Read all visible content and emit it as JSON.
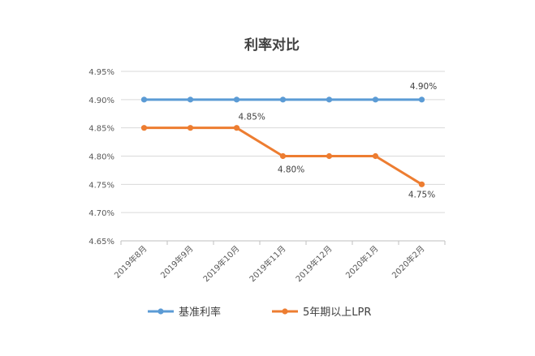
{
  "chart_data": {
    "type": "line",
    "title": "利率对比",
    "categories": [
      "2019年8月",
      "2019年9月",
      "2019年10月",
      "2019年11月",
      "2019年12月",
      "2020年1月",
      "2020年2月"
    ],
    "ylim": [
      4.65,
      4.95
    ],
    "ystep": 0.05,
    "y_tick_labels": [
      "4.65%",
      "4.70%",
      "4.75%",
      "4.80%",
      "4.85%",
      "4.90%",
      "4.95%"
    ],
    "grid": true,
    "legend_position": "bottom",
    "series": [
      {
        "name": "基准利率",
        "color": "#5b9bd5",
        "values": [
          4.9,
          4.9,
          4.9,
          4.9,
          4.9,
          4.9,
          4.9
        ],
        "data_labels": [
          null,
          null,
          null,
          null,
          null,
          null,
          "4.90%"
        ]
      },
      {
        "name": "5年期以上LPR",
        "color": "#ed7d31",
        "values": [
          4.85,
          4.85,
          4.85,
          4.8,
          4.8,
          4.8,
          4.75
        ],
        "data_labels": [
          null,
          null,
          "4.85%",
          "4.80%",
          null,
          null,
          "4.75%"
        ]
      }
    ]
  }
}
